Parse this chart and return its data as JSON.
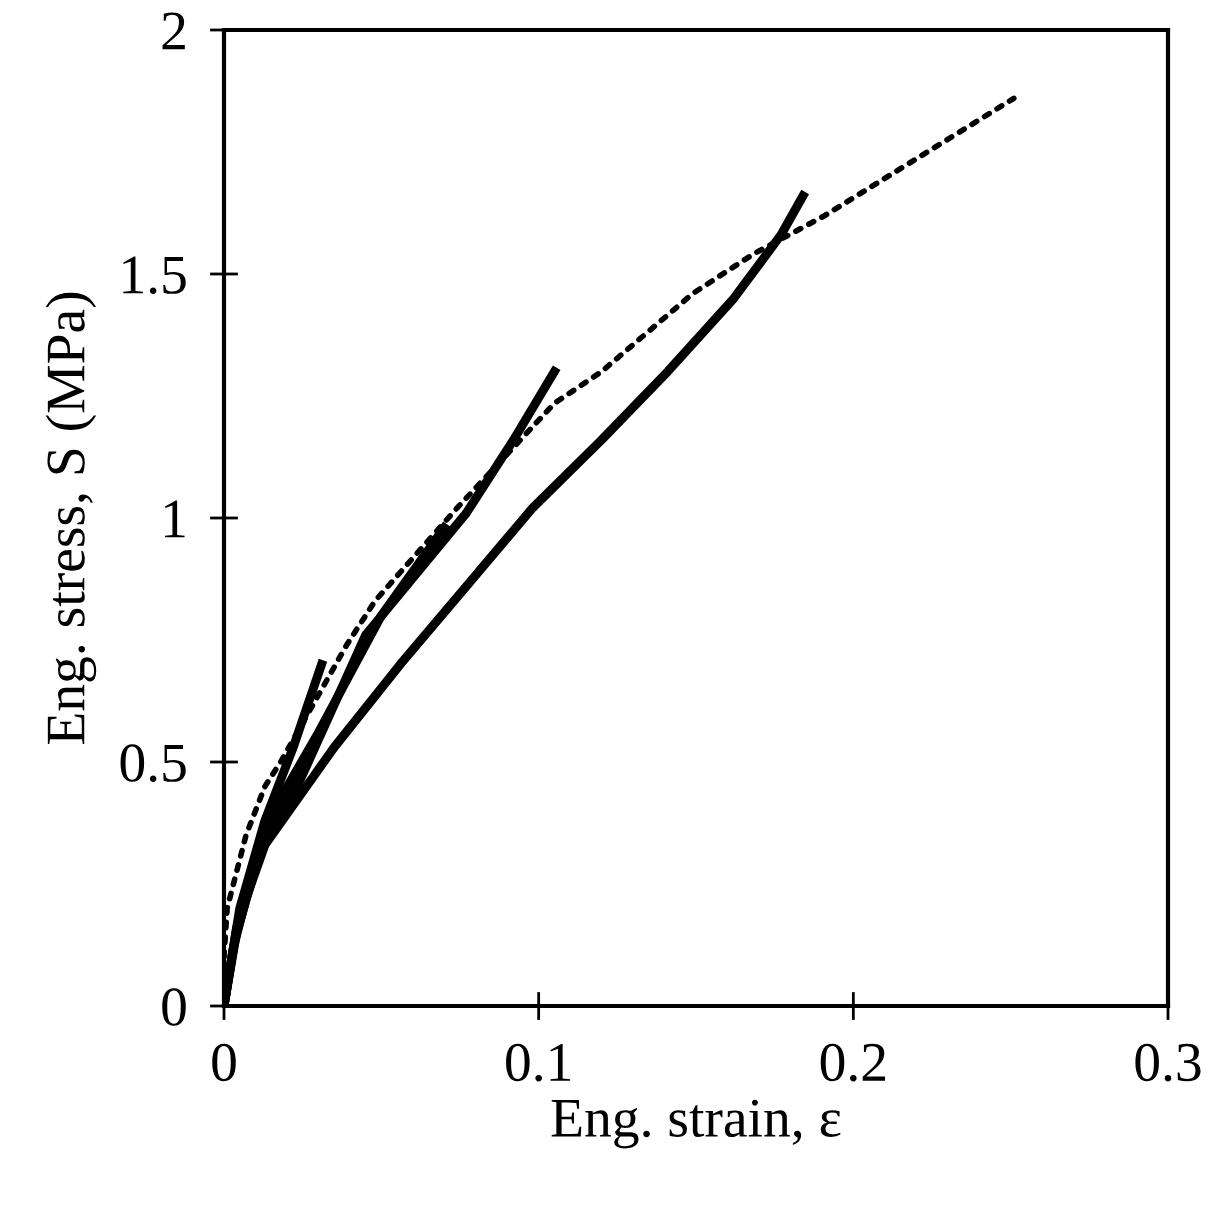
{
  "chart_data": {
    "type": "line",
    "xlabel": "Eng. strain, ε",
    "ylabel": "Eng. stress, S (MPa)",
    "xlim": [
      0,
      0.3
    ],
    "ylim": [
      0,
      2
    ],
    "xticks": [
      0,
      {
        "value": 0.1,
        "label": "0.1"
      },
      {
        "value": 0.2,
        "label": "0.2"
      },
      {
        "value": 0.3,
        "label": "0.3"
      }
    ],
    "yticks": [
      0,
      0.5,
      1,
      1.5,
      2
    ],
    "grid": false,
    "legend": false,
    "marker": "none",
    "series": [
      {
        "color": "#000000",
        "line_style": "solid",
        "x": [
          0,
          0.003,
          0.007,
          0.013,
          0.035,
          0.056,
          0.077,
          0.098,
          0.12,
          0.141,
          0.162,
          0.177,
          0.184
        ],
        "values": [
          0,
          0.12,
          0.22,
          0.33,
          0.53,
          0.7,
          0.86,
          1.02,
          1.16,
          1.3,
          1.45,
          1.58,
          1.66
        ]
      },
      {
        "color": "#000000",
        "line_style": "solid",
        "x": [
          0,
          0.004,
          0.013,
          0.024,
          0.045,
          0.077,
          0.092,
          0.105
        ],
        "values": [
          0,
          0.15,
          0.35,
          0.46,
          0.76,
          1.01,
          1.16,
          1.3
        ]
      },
      {
        "color": "#000000",
        "line_style": "solid",
        "x": [
          0,
          0.004,
          0.013,
          0.03,
          0.05,
          0.07
        ],
        "values": [
          0,
          0.16,
          0.37,
          0.56,
          0.8,
          0.98
        ]
      },
      {
        "color": "#000000",
        "line_style": "solid",
        "x": [
          0,
          0.005,
          0.013,
          0.022,
          0.031
        ],
        "values": [
          0,
          0.2,
          0.38,
          0.53,
          0.7
        ]
      },
      {
        "color": "#000000",
        "line_style": "dotted",
        "x": [
          0,
          0.001,
          0.007,
          0.013,
          0.018,
          0.039,
          0.048,
          0.074,
          0.105,
          0.12,
          0.149,
          0.168,
          0.191,
          0.226,
          0.251
        ],
        "values": [
          0.1,
          0.2,
          0.35,
          0.45,
          0.5,
          0.74,
          0.83,
          1.02,
          1.235,
          1.3,
          1.46,
          1.54,
          1.62,
          1.76,
          1.86
        ]
      }
    ]
  }
}
